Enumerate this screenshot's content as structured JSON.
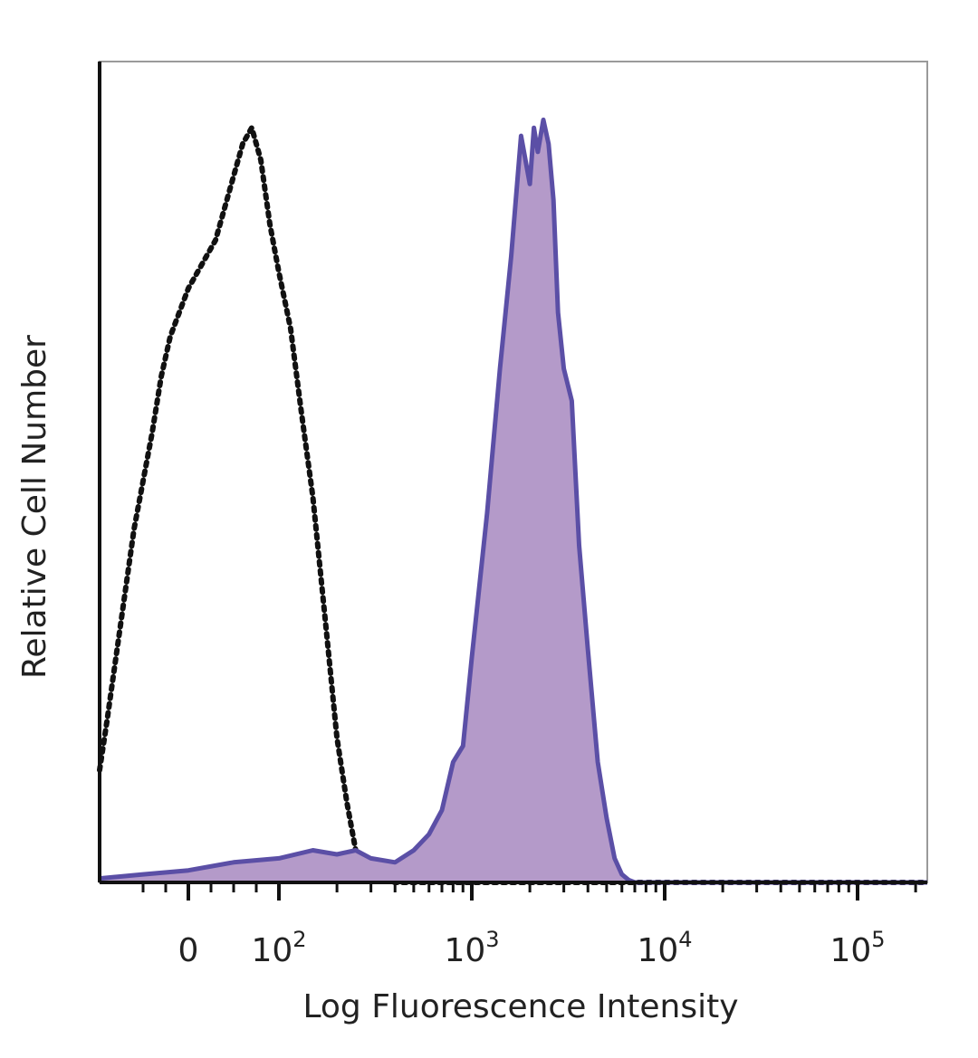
{
  "chart_data": {
    "type": "area",
    "xlabel": "Log Fluorescence Intensity",
    "ylabel": "Relative Cell Number",
    "x_scale": "biexponential",
    "xlim": [
      -100,
      250000
    ],
    "ylim": [
      0,
      100
    ],
    "grid": false,
    "legend": "none",
    "x_ticks": [
      {
        "value": 0,
        "base": "0",
        "exp": ""
      },
      {
        "value": 100,
        "base": "10",
        "exp": "2"
      },
      {
        "value": 1000,
        "base": "10",
        "exp": "3"
      },
      {
        "value": 10000,
        "base": "10",
        "exp": "4"
      },
      {
        "value": 100000,
        "base": "10",
        "exp": "5"
      }
    ],
    "minor_ticks": [
      -50,
      -25,
      25,
      50,
      75,
      200,
      300,
      400,
      500,
      600,
      700,
      800,
      900,
      2000,
      3000,
      4000,
      5000,
      6000,
      7000,
      8000,
      9000,
      20000,
      30000,
      40000,
      50000,
      60000,
      70000,
      80000,
      90000,
      200000
    ],
    "series": [
      {
        "style": "dotted",
        "color": "#111111",
        "fill": "none",
        "x": [
          -100,
          -90,
          -80,
          -70,
          -60,
          -50,
          -40,
          -30,
          -20,
          -10,
          0,
          10,
          20,
          30,
          40,
          50,
          60,
          70,
          80,
          90,
          100,
          115,
          130,
          150,
          175,
          200,
          225,
          250,
          275,
          300,
          350,
          400,
          500,
          1000,
          10000,
          250000
        ],
        "y": [
          14,
          20,
          28,
          36,
          44,
          50,
          56,
          63,
          68,
          71,
          74,
          76,
          78,
          80,
          84,
          88,
          92,
          94,
          90,
          82,
          76,
          69,
          59,
          48,
          32,
          18,
          10,
          4,
          2,
          1,
          0.5,
          0,
          0,
          0,
          0,
          0
        ]
      },
      {
        "style": "solid",
        "color": "#5b4fa6",
        "fill": "#b49ac9",
        "x": [
          -100,
          -50,
          0,
          50,
          100,
          150,
          200,
          250,
          300,
          400,
          500,
          600,
          700,
          800,
          900,
          1000,
          1200,
          1400,
          1600,
          1800,
          2000,
          2100,
          2200,
          2350,
          2500,
          2650,
          2800,
          3000,
          3300,
          3600,
          4000,
          4500,
          5000,
          5500,
          6000,
          6500,
          7000,
          8000,
          10000,
          100000,
          250000
        ],
        "y": [
          0.5,
          1,
          1.5,
          2.5,
          3,
          4,
          3.5,
          4,
          3,
          2.5,
          4,
          6,
          9,
          15,
          17,
          28,
          46,
          64,
          78,
          93,
          87,
          94,
          91,
          95,
          92,
          85,
          71,
          64,
          60,
          42,
          29,
          15,
          8,
          3,
          1,
          0.3,
          0,
          0,
          0,
          0,
          0
        ]
      }
    ]
  }
}
